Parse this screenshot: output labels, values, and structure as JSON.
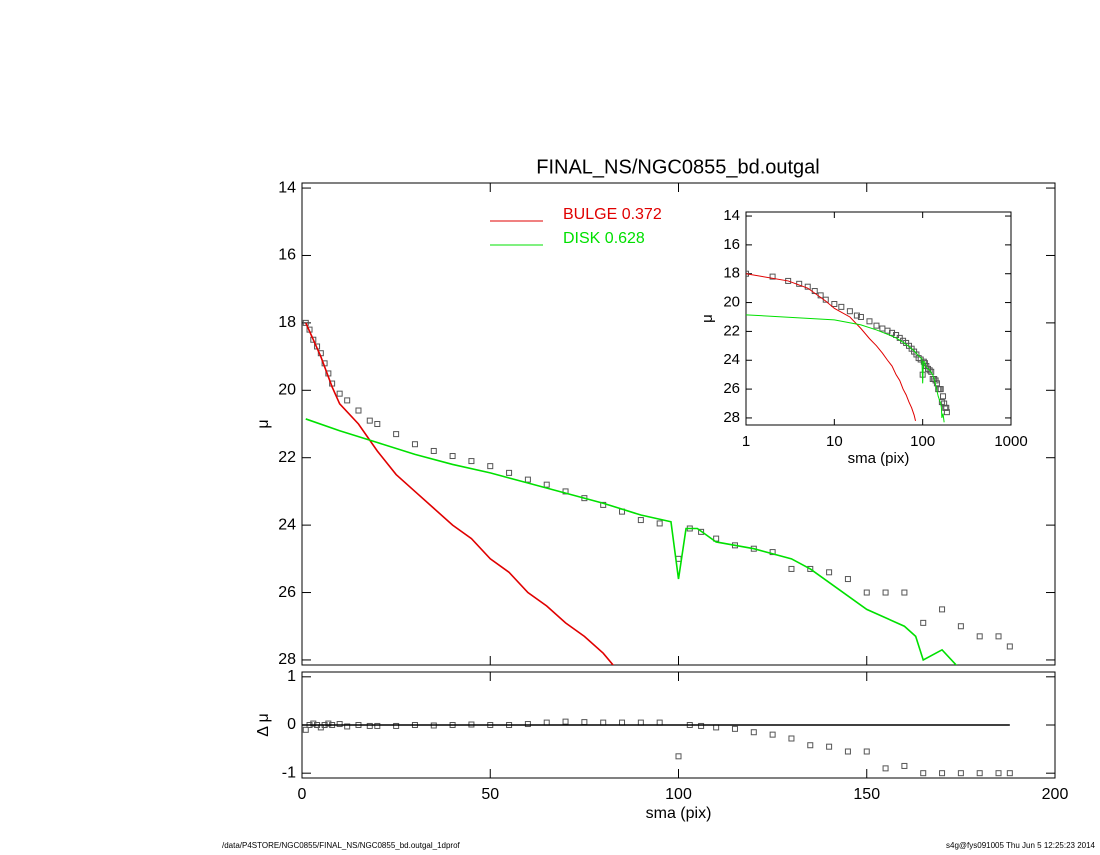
{
  "chart_data": [
    {
      "type": "line",
      "title": "FINAL_NS/NGC0855_bd.outgal",
      "ylabel": "μ",
      "xlim": [
        0,
        200
      ],
      "ylim": [
        13.85,
        28.15
      ],
      "yreverse": true,
      "yticks": [
        14,
        16,
        18,
        20,
        22,
        24,
        26,
        28
      ],
      "series": [
        {
          "marker": "square",
          "color": "#555555",
          "x": [
            1,
            2,
            3,
            4,
            5,
            6,
            7,
            8,
            10,
            12,
            15,
            18,
            20,
            25,
            30,
            35,
            40,
            45,
            50,
            55,
            60,
            65,
            70,
            75,
            80,
            85,
            90,
            95,
            100,
            103,
            106,
            110,
            115,
            120,
            125,
            130,
            135,
            140,
            145,
            150,
            155,
            160,
            165,
            170,
            175,
            180,
            185,
            188
          ],
          "values": [
            18.0,
            18.2,
            18.5,
            18.7,
            18.9,
            19.2,
            19.5,
            19.8,
            20.1,
            20.3,
            20.6,
            20.9,
            21.0,
            21.3,
            21.6,
            21.8,
            21.95,
            22.1,
            22.25,
            22.45,
            22.65,
            22.8,
            23.0,
            23.2,
            23.4,
            23.6,
            23.85,
            23.95,
            25.0,
            24.1,
            24.2,
            24.4,
            24.6,
            24.7,
            24.8,
            25.3,
            25.3,
            25.4,
            25.6,
            26.0,
            26.0,
            26.0,
            26.9,
            26.5,
            27.0,
            27.3,
            27.3,
            27.6
          ]
        },
        {
          "name": "BULGE  0.372",
          "color": "#e00000",
          "x": [
            1,
            3,
            5,
            8,
            10,
            15,
            20,
            25,
            30,
            35,
            40,
            45,
            50,
            55,
            60,
            65,
            70,
            75,
            80,
            83
          ],
          "values": [
            18.0,
            18.5,
            19.0,
            19.9,
            20.4,
            21.0,
            21.8,
            22.5,
            23.0,
            23.5,
            24.0,
            24.4,
            25.0,
            25.4,
            26.0,
            26.4,
            26.9,
            27.3,
            27.8,
            28.2
          ]
        },
        {
          "name": "DISK  0.628",
          "color": "#00e000",
          "x": [
            1,
            10,
            20,
            30,
            40,
            50,
            60,
            70,
            80,
            90,
            98,
            100,
            102,
            105,
            110,
            120,
            130,
            135,
            140,
            150,
            160,
            163,
            165,
            170,
            175
          ],
          "values": [
            20.85,
            21.2,
            21.55,
            21.9,
            22.2,
            22.45,
            22.75,
            23.05,
            23.35,
            23.7,
            23.9,
            25.6,
            24.1,
            24.1,
            24.5,
            24.7,
            25.0,
            25.3,
            25.7,
            26.5,
            27.0,
            27.3,
            28.0,
            27.7,
            28.3
          ]
        }
      ]
    },
    {
      "type": "scatter",
      "ylabel": "Δ μ",
      "xlabel": "sma (pix)",
      "xlim": [
        0,
        200
      ],
      "xticks": [
        0,
        50,
        100,
        150,
        200
      ],
      "ylim": [
        -1.1,
        1.1
      ],
      "yticks": [
        -1,
        0,
        1
      ],
      "series": [
        {
          "marker": "square",
          "color": "#555555",
          "x": [
            1,
            2,
            3,
            4,
            5,
            6,
            7,
            8,
            10,
            12,
            15,
            18,
            20,
            25,
            30,
            35,
            40,
            45,
            50,
            55,
            60,
            65,
            70,
            75,
            80,
            85,
            90,
            95,
            100,
            103,
            106,
            110,
            115,
            120,
            125,
            130,
            135,
            140,
            145,
            150,
            155,
            160,
            165,
            170,
            175,
            180,
            185,
            188
          ],
          "values": [
            -0.1,
            0.0,
            0.03,
            0.0,
            -0.05,
            0.0,
            0.03,
            0.0,
            0.02,
            -0.03,
            0.0,
            -0.02,
            -0.02,
            -0.02,
            0.0,
            -0.01,
            0.0,
            0.01,
            0.0,
            0.0,
            0.02,
            0.05,
            0.07,
            0.06,
            0.05,
            0.05,
            0.05,
            0.05,
            -0.65,
            0.0,
            -0.02,
            -0.05,
            -0.08,
            -0.15,
            -0.2,
            -0.28,
            -0.42,
            -0.45,
            -0.55,
            -0.55,
            -0.9,
            -0.85,
            -1.0,
            -1.0,
            -1.0,
            -1.0,
            -1.0,
            -1.0
          ]
        },
        {
          "color": "#000000",
          "x": [
            0,
            188
          ],
          "values": [
            0,
            0
          ]
        }
      ]
    },
    {
      "type": "line",
      "xscale": "log",
      "xlabel": "sma (pix)",
      "ylabel": "μ",
      "xlim": [
        1,
        1000
      ],
      "xticks": [
        1,
        10,
        100,
        1000
      ],
      "ylim": [
        13.72,
        28.49
      ],
      "yreverse": true,
      "yticks": [
        14,
        16,
        18,
        20,
        22,
        24,
        26,
        28
      ],
      "data_from": 0
    }
  ],
  "footer": {
    "left": "/data/P4STORE/NGC0855/FINAL_NS/NGC0855_bd.outgal_1dprof",
    "right": "s4g@fys091005  Thu Jun  5 12:25:23 2014"
  }
}
